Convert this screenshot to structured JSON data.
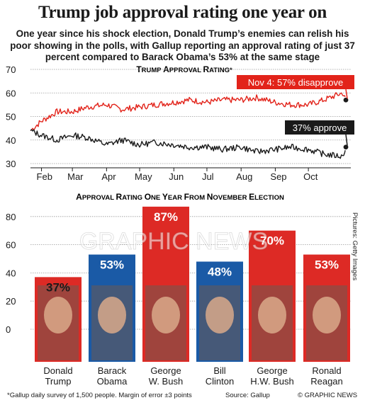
{
  "headline": "Trump job approval rating one year on",
  "standfirst": "One year since his shock election, Donald Trump’s enemies can relish his poor showing in the polls, with Gallup reporting an approval rating of just 37 percent compared to Barack Obama’s 53% at the same stage",
  "watermark": "GRAPHIC NEWS",
  "pictures_credit": "Pictures: Getty Images",
  "footnote": "*Gallup daily survey of 1,500 people. Margin of error ±3 points",
  "source": "Source: Gallup",
  "copyright": "© GRAPHIC NEWS",
  "colors": {
    "disapprove": "#e2231a",
    "approve": "#1a1a1a",
    "red_bar": "#dd2a25",
    "blue_bar": "#1a5aa6"
  },
  "chart_data": [
    {
      "type": "line",
      "title": "Trump Approval Rating*",
      "ylim": [
        30,
        70
      ],
      "yticks": [
        30,
        40,
        50,
        60,
        70
      ],
      "x_labels": [
        "Feb",
        "Mar",
        "Apr",
        "May",
        "Jun",
        "Jul",
        "Aug",
        "Sep",
        "Oct"
      ],
      "annotations": [
        "Nov 4: 57% disapprove",
        "37% approve"
      ],
      "series": [
        {
          "key": "disapprove",
          "x": [
            "Jan 22",
            "Feb 1",
            "Feb 15",
            "Mar 1",
            "Mar 15",
            "Apr 1",
            "Apr 15",
            "May 1",
            "May 15",
            "Jun 1",
            "Jun 15",
            "Jul 1",
            "Jul 15",
            "Aug 1",
            "Aug 15",
            "Sep 1",
            "Sep 15",
            "Oct 1",
            "Oct 15",
            "Nov 1",
            "Nov 4"
          ],
          "values": [
            44,
            48,
            52,
            52,
            54,
            55,
            53,
            54,
            55,
            56,
            57,
            56,
            57,
            57,
            58,
            56,
            55,
            55,
            57,
            60,
            57
          ]
        },
        {
          "key": "approve",
          "x": [
            "Jan 22",
            "Feb 1",
            "Feb 15",
            "Mar 1",
            "Mar 15",
            "Apr 1",
            "Apr 15",
            "May 1",
            "May 15",
            "Jun 1",
            "Jun 15",
            "Jul 1",
            "Jul 15",
            "Aug 1",
            "Aug 15",
            "Sep 1",
            "Sep 15",
            "Oct 1",
            "Oct 15",
            "Nov 1",
            "Nov 4"
          ],
          "values": [
            44,
            42,
            40,
            42,
            41,
            38,
            40,
            38,
            39,
            38,
            37,
            37,
            36,
            37,
            35,
            36,
            37,
            36,
            34,
            33,
            37
          ]
        }
      ]
    },
    {
      "type": "bar",
      "title": "Approval Rating One Year From November Election",
      "ylim": [
        0,
        100
      ],
      "yticks": [
        0,
        20,
        40,
        60,
        80
      ],
      "categories": [
        "Donald Trump",
        "Barack Obama",
        "George W. Bush",
        "Bill Clinton",
        "George H.W. Bush",
        "Ronald Reagan"
      ],
      "values": [
        37,
        53,
        87,
        48,
        70,
        53
      ],
      "value_labels": [
        "37%",
        "53%",
        "87%",
        "48%",
        "70%",
        "53%"
      ],
      "bar_colors": [
        "#dd2a25",
        "#1a5aa6",
        "#dd2a25",
        "#1a5aa6",
        "#dd2a25",
        "#dd2a25"
      ],
      "category_lines": [
        [
          "Donald",
          "Trump"
        ],
        [
          "Barack",
          "Obama"
        ],
        [
          "George",
          "W. Bush"
        ],
        [
          "Bill",
          "Clinton"
        ],
        [
          "George",
          "H.W. Bush"
        ],
        [
          "Ronald",
          "Reagan"
        ]
      ]
    }
  ]
}
